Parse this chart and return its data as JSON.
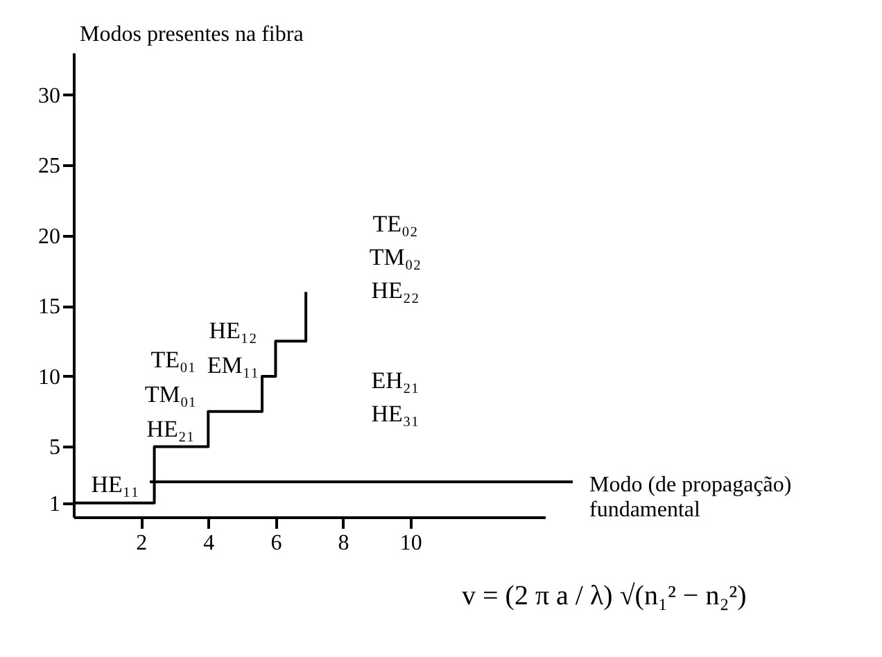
{
  "chart_data": {
    "type": "step",
    "ylabel": "Modos presentes na fibra",
    "x": [
      0,
      2.4,
      4,
      5.6,
      6,
      6.9
    ],
    "series": [
      {
        "color": "#000000",
        "values": [
          1,
          5,
          7.5,
          10,
          12.5,
          16
        ]
      }
    ],
    "xlim": [
      0,
      14
    ],
    "ylim": [
      0,
      33
    ],
    "xticks": [
      2,
      4,
      6,
      8,
      10
    ],
    "yticks": [
      1,
      5,
      10,
      15,
      20,
      25,
      30
    ],
    "grid": false,
    "marker": "none",
    "line_style": "solid",
    "ref_lines": [
      {
        "axis": "y",
        "value": 2.5,
        "label": "Modo (de propagação) fundamental",
        "color": "#000000"
      }
    ],
    "annotations": [
      "HE₁₁",
      "TE₀₁",
      "TM₀₁",
      "HE₂₁",
      "HE₁₂",
      "EM₁₁",
      "TE₀₂",
      "TM₀₂",
      "HE₂₂",
      "EH₂₁",
      "HE₃₁",
      "v = (2 π a / λ) √(n₁² − n₂²)"
    ]
  }
}
